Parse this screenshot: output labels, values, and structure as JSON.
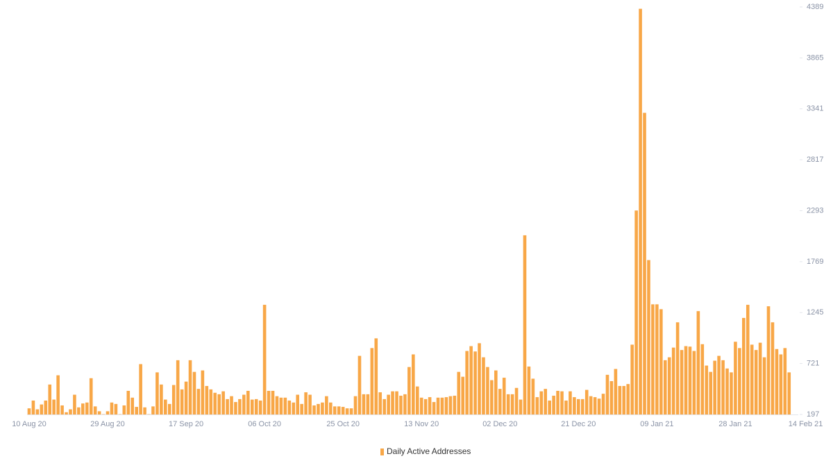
{
  "chart_data": {
    "type": "bar",
    "categories": [
      "10 Aug 20",
      null,
      null,
      null,
      null,
      null,
      null,
      null,
      null,
      null,
      null,
      null,
      null,
      null,
      null,
      null,
      null,
      null,
      null,
      "29 Aug 20",
      null,
      null,
      null,
      null,
      null,
      null,
      null,
      null,
      null,
      null,
      null,
      null,
      null,
      null,
      null,
      null,
      null,
      null,
      "17 Sep 20",
      null,
      null,
      null,
      null,
      null,
      null,
      null,
      null,
      null,
      null,
      null,
      null,
      null,
      null,
      null,
      null,
      null,
      null,
      "06 Oct 20",
      null,
      null,
      null,
      null,
      null,
      null,
      null,
      null,
      null,
      null,
      null,
      null,
      null,
      null,
      null,
      null,
      null,
      null,
      "25 Oct 20",
      null,
      null,
      null,
      null,
      null,
      null,
      null,
      null,
      null,
      null,
      null,
      null,
      null,
      null,
      null,
      null,
      null,
      null,
      "13 Nov 20",
      null,
      null,
      null,
      null,
      null,
      null,
      null,
      null,
      null,
      null,
      null,
      null,
      null,
      null,
      null,
      null,
      null,
      null,
      "02 Dec 20",
      null,
      null,
      null,
      null,
      null,
      null,
      null,
      null,
      null,
      null,
      null,
      null,
      null,
      null,
      null,
      null,
      null,
      null,
      "21 Dec 20",
      null,
      null,
      null,
      null,
      null,
      null,
      null,
      null,
      null,
      null,
      null,
      null,
      null,
      null,
      null,
      null,
      null,
      null,
      "09 Jan 21",
      null,
      null,
      null,
      null,
      null,
      null,
      null,
      null,
      null,
      null,
      null,
      null,
      null,
      null,
      null,
      null,
      null,
      null,
      "28 Jan 21",
      null,
      null,
      null,
      null,
      null,
      null,
      null,
      null,
      null,
      null,
      null,
      null,
      null,
      null,
      null,
      null,
      "14 Feb 21"
    ],
    "series": [
      {
        "name": "Daily Active Addresses",
        "color": "#f8a747",
        "values": [
          260,
          340,
          250,
          300,
          340,
          505,
          350,
          600,
          290,
          220,
          250,
          400,
          270,
          310,
          320,
          570,
          280,
          230,
          200,
          230,
          320,
          305,
          200,
          290,
          440,
          370,
          275,
          715,
          270,
          200,
          280,
          630,
          505,
          350,
          305,
          500,
          755,
          455,
          535,
          755,
          635,
          460,
          650,
          490,
          455,
          420,
          405,
          435,
          355,
          385,
          325,
          355,
          400,
          440,
          350,
          355,
          340,
          1325,
          440,
          440,
          385,
          370,
          370,
          340,
          320,
          400,
          305,
          425,
          400,
          290,
          305,
          320,
          385,
          320,
          280,
          280,
          275,
          260,
          260,
          385,
          800,
          405,
          405,
          880,
          980,
          425,
          355,
          400,
          435,
          435,
          390,
          405,
          685,
          815,
          485,
          370,
          355,
          375,
          325,
          370,
          370,
          375,
          385,
          390,
          635,
          585,
          850,
          900,
          845,
          930,
          785,
          685,
          550,
          650,
          460,
          575,
          405,
          405,
          470,
          350,
          2040,
          690,
          565,
          375,
          435,
          460,
          340,
          390,
          440,
          435,
          340,
          435,
          375,
          355,
          355,
          450,
          385,
          375,
          360,
          410,
          605,
          540,
          665,
          490,
          490,
          510,
          915,
          2295,
          4370,
          3300,
          1785,
          1330,
          1330,
          1280,
          755,
          785,
          885,
          1145,
          860,
          900,
          895,
          850,
          1260,
          920,
          700,
          635,
          750,
          800,
          755,
          670,
          630,
          945,
          880,
          1190,
          1325,
          915,
          860,
          935,
          785,
          1310,
          1145,
          870,
          815,
          880,
          630,
          null,
          null,
          null,
          null
        ]
      }
    ],
    "ylim": [
      197,
      4389
    ],
    "yticks": [
      197,
      721,
      1245,
      1769,
      2293,
      2817,
      3341,
      3865,
      4389
    ],
    "grid": false
  }
}
